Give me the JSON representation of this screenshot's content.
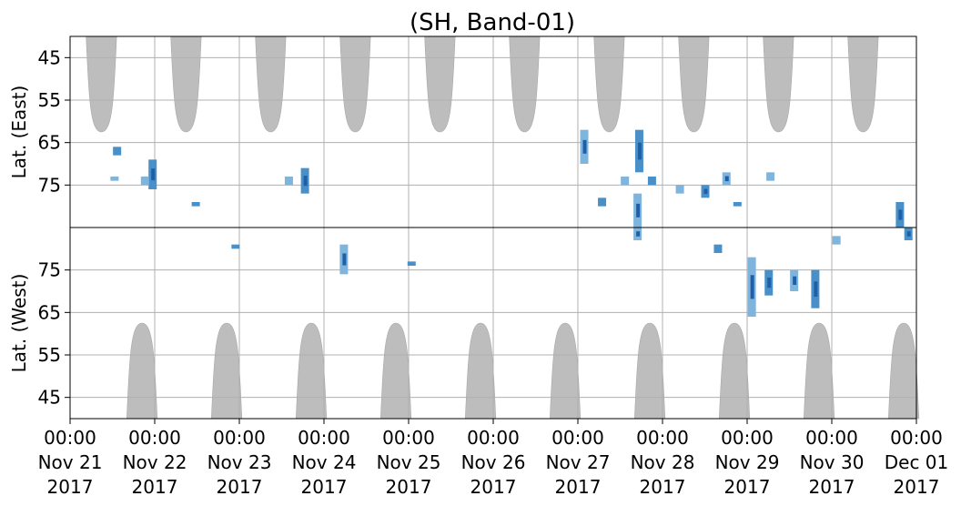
{
  "chart_data": {
    "type": "heatmap",
    "title": "(SH, Band-01)",
    "panels": [
      {
        "name": "east",
        "ylabel": "Lat. (East)",
        "yticks": [
          45,
          55,
          65,
          75
        ],
        "ylim": [
          40,
          85
        ],
        "orientation": "latitude increases downward"
      },
      {
        "name": "west",
        "ylabel": "Lat. (West)",
        "yticks": [
          75,
          65,
          55,
          45
        ],
        "ylim": [
          85,
          40
        ],
        "orientation": "latitude increases upward"
      }
    ],
    "x_ticks": [
      {
        "time": "00:00",
        "date": "Nov 21",
        "year": "2017",
        "day": 0
      },
      {
        "time": "00:00",
        "date": "Nov 22",
        "year": "2017",
        "day": 1
      },
      {
        "time": "00:00",
        "date": "Nov 23",
        "year": "2017",
        "day": 2
      },
      {
        "time": "00:00",
        "date": "Nov 24",
        "year": "2017",
        "day": 3
      },
      {
        "time": "00:00",
        "date": "Nov 25",
        "year": "2017",
        "day": 4
      },
      {
        "time": "00:00",
        "date": "Nov 26",
        "year": "2017",
        "day": 5
      },
      {
        "time": "00:00",
        "date": "Nov 27",
        "year": "2017",
        "day": 6
      },
      {
        "time": "00:00",
        "date": "Nov 28",
        "year": "2017",
        "day": 7
      },
      {
        "time": "00:00",
        "date": "Nov 29",
        "year": "2017",
        "day": 8
      },
      {
        "time": "00:00",
        "date": "Nov 30",
        "year": "2017",
        "day": 9
      },
      {
        "time": "00:00",
        "date": "Dec 01",
        "year": "2017",
        "day": 10
      }
    ],
    "xlim": [
      "2017-11-21 00:00",
      "2017-12-01 00:00"
    ],
    "grid": true,
    "daylight_east": [
      0.37,
      1.37,
      2.37,
      3.37,
      4.37,
      5.37,
      6.37,
      7.37,
      8.37,
      9.37
    ],
    "daylight_west": [
      0.85,
      1.85,
      2.85,
      3.85,
      4.85,
      5.85,
      6.85,
      7.85,
      8.85,
      9.85
    ],
    "daylight_color": "#bdbdbd",
    "event_color_light": "#7fb4dc",
    "event_color_mid": "#4a90c8",
    "event_color_dark": "#1f5fa8",
    "events_east": [
      {
        "day": 0.55,
        "lat0": 66,
        "lat1": 68
      },
      {
        "day": 0.52,
        "lat0": 73,
        "lat1": 74
      },
      {
        "day": 0.97,
        "lat0": 69,
        "lat1": 76
      },
      {
        "day": 0.88,
        "lat0": 73,
        "lat1": 75
      },
      {
        "day": 1.48,
        "lat0": 79,
        "lat1": 80
      },
      {
        "day": 2.58,
        "lat0": 73,
        "lat1": 75
      },
      {
        "day": 2.77,
        "lat0": 71,
        "lat1": 77
      },
      {
        "day": 6.07,
        "lat0": 62,
        "lat1": 70
      },
      {
        "day": 6.28,
        "lat0": 78,
        "lat1": 80
      },
      {
        "day": 6.55,
        "lat0": 73,
        "lat1": 75
      },
      {
        "day": 6.72,
        "lat0": 62,
        "lat1": 72
      },
      {
        "day": 6.7,
        "lat0": 77,
        "lat1": 85
      },
      {
        "day": 6.87,
        "lat0": 73,
        "lat1": 75
      },
      {
        "day": 7.2,
        "lat0": 75,
        "lat1": 77
      },
      {
        "day": 7.5,
        "lat0": 75,
        "lat1": 78
      },
      {
        "day": 7.75,
        "lat0": 72,
        "lat1": 75
      },
      {
        "day": 7.88,
        "lat0": 79,
        "lat1": 80
      },
      {
        "day": 8.27,
        "lat0": 72,
        "lat1": 74
      },
      {
        "day": 9.8,
        "lat0": 79,
        "lat1": 85
      }
    ],
    "events_west": [
      {
        "day": 1.95,
        "lat0": 80,
        "lat1": 81
      },
      {
        "day": 3.23,
        "lat0": 74,
        "lat1": 81
      },
      {
        "day": 4.03,
        "lat0": 76,
        "lat1": 77
      },
      {
        "day": 6.7,
        "lat0": 82,
        "lat1": 85
      },
      {
        "day": 7.65,
        "lat0": 79,
        "lat1": 81
      },
      {
        "day": 8.05,
        "lat0": 64,
        "lat1": 78
      },
      {
        "day": 8.25,
        "lat0": 69,
        "lat1": 75
      },
      {
        "day": 8.55,
        "lat0": 70,
        "lat1": 75
      },
      {
        "day": 8.8,
        "lat0": 66,
        "lat1": 75
      },
      {
        "day": 9.05,
        "lat0": 81,
        "lat1": 83
      },
      {
        "day": 9.9,
        "lat0": 82,
        "lat1": 85
      }
    ]
  }
}
